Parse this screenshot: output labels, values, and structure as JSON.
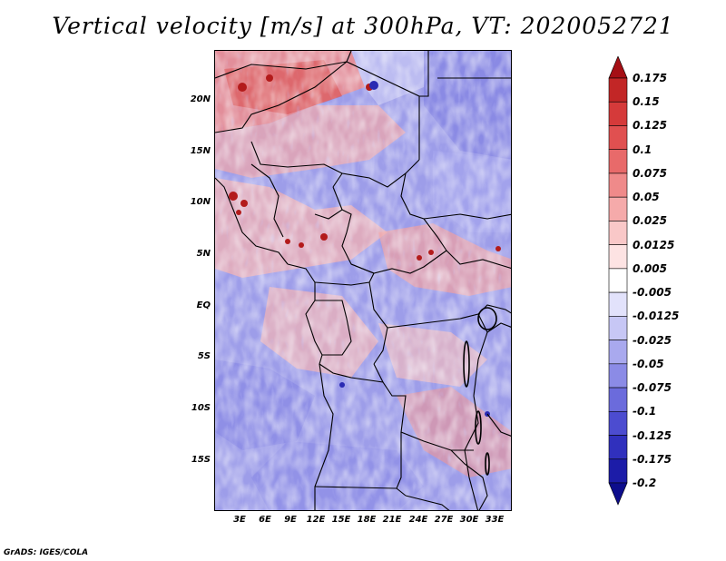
{
  "title": "Vertical velocity [m/s] at 300hPa, VT: 2020052721",
  "footer": "GrADS: IGES/COLA",
  "map": {
    "variable": "Vertical velocity",
    "units": "m/s",
    "level": "300hPa",
    "valid_time": "2020052721",
    "lat_labels": [
      "20N",
      "15N",
      "10N",
      "5N",
      "EQ",
      "5S",
      "10S",
      "15S"
    ],
    "lon_labels": [
      "3E",
      "6E",
      "9E",
      "12E",
      "15E",
      "18E",
      "21E",
      "24E",
      "27E",
      "30E",
      "33E"
    ]
  },
  "colorbar": {
    "labels": [
      "0.175",
      "0.15",
      "0.125",
      "0.1",
      "0.075",
      "0.05",
      "0.025",
      "0.0125",
      "0.005",
      "-0.005",
      "-0.0125",
      "-0.025",
      "-0.05",
      "-0.075",
      "-0.1",
      "-0.125",
      "-0.175",
      "-0.2"
    ],
    "colors": [
      "#a50f15",
      "#c22626",
      "#d53a3a",
      "#e05050",
      "#e86a6a",
      "#ef8a8a",
      "#f5aaaa",
      "#f9c8c8",
      "#fde3e3",
      "#ffffff",
      "#e2e2fb",
      "#c7c7f5",
      "#a9a9ee",
      "#8b8be6",
      "#6b6bdc",
      "#4c4cd0",
      "#3030bd",
      "#1c1ca8",
      "#0d0d8c"
    ]
  }
}
